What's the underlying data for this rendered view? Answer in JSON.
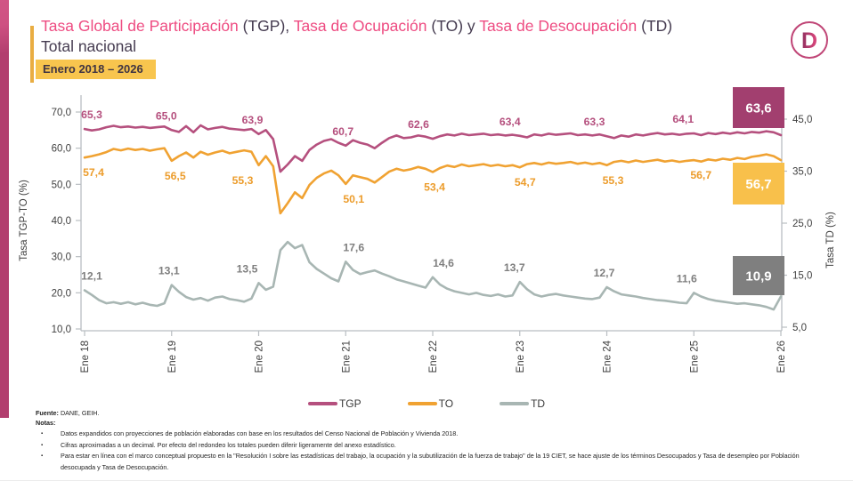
{
  "header": {
    "title_segments": [
      {
        "text": "Tasa Global de Participación ",
        "style": "pink"
      },
      {
        "text": "(TGP), ",
        "style": "dark"
      },
      {
        "text": "Tasa de Ocupación ",
        "style": "pink"
      },
      {
        "text": "(TO) ",
        "style": "dark"
      },
      {
        "text": "y ",
        "style": "dark"
      },
      {
        "text": "Tasa de Desocupación ",
        "style": "pink"
      },
      {
        "text": "(TD)",
        "style": "dark"
      }
    ],
    "subtitle": "Total nacional",
    "period": "Enero 2018 – 2026",
    "logo_letter": "D"
  },
  "colors": {
    "accent_pink": "#ee4c82",
    "dark_text": "#453b50",
    "gold": "#e9ad42",
    "badge_bg": "#f8c54e",
    "axis_line": "#b9bec2",
    "tick_text": "#3f3f3f"
  },
  "chart_data": {
    "type": "line",
    "title": "Tasa Global de Participación (TGP), Tasa de Ocupación (TO) y Tasa de Desocupación (TD) - Total nacional, Enero 2018 - 2026",
    "grid": false,
    "legend_position": "bottom",
    "x": {
      "tick_labels": [
        "Ene 18",
        "Ene 19",
        "Ene 20",
        "Ene 21",
        "Ene 22",
        "Ene 23",
        "Ene 24",
        "Ene 25",
        "Ene 26"
      ],
      "tick_month_index": [
        0,
        12,
        24,
        36,
        48,
        60,
        72,
        84,
        96
      ],
      "months_total": 97
    },
    "y_left": {
      "label": "Tasa TGP-TO (%)",
      "tick_labels": [
        "70,0",
        "60,0",
        "50,0",
        "40,0",
        "30,0",
        "20,0",
        "10,0"
      ],
      "tick_values": [
        70,
        60,
        50,
        40,
        30,
        20,
        10
      ],
      "range": [
        10,
        70
      ]
    },
    "y_right": {
      "label": "Tasa TD (%)",
      "tick_labels": [
        "45,0",
        "35,0",
        "25,0",
        "15,0",
        "5,0"
      ],
      "tick_values": [
        45,
        35,
        25,
        15,
        5
      ],
      "range": [
        5,
        45
      ]
    },
    "series": [
      {
        "name": "TGP",
        "axis": "left",
        "color": "#b5507e",
        "label_color": "#b5507e",
        "values": [
          65.3,
          64.9,
          65.2,
          65.8,
          66.2,
          65.8,
          66.0,
          65.7,
          65.9,
          65.6,
          65.8,
          66.0,
          65.0,
          64.5,
          66.1,
          64.4,
          66.3,
          65.2,
          65.6,
          65.9,
          65.4,
          65.2,
          65.0,
          65.3,
          63.9,
          65.0,
          62.5,
          53.5,
          55.5,
          57.8,
          56.5,
          59.5,
          61.0,
          62.0,
          62.5,
          61.5,
          60.7,
          62.2,
          61.5,
          61.0,
          60.0,
          61.5,
          62.8,
          63.5,
          62.8,
          63.0,
          63.5,
          63.2,
          62.6,
          63.3,
          63.8,
          63.5,
          64.0,
          63.6,
          63.8,
          64.0,
          63.6,
          63.8,
          63.5,
          63.7,
          63.4,
          63.0,
          63.8,
          63.5,
          64.0,
          63.7,
          63.9,
          64.1,
          63.6,
          63.8,
          63.5,
          63.8,
          63.3,
          62.8,
          63.5,
          63.2,
          63.8,
          63.5,
          63.9,
          64.2,
          63.8,
          64.0,
          63.7,
          64.0,
          64.1,
          63.6,
          64.2,
          63.9,
          64.3,
          64.0,
          64.4,
          64.1,
          64.5,
          64.3,
          64.7,
          64.4,
          63.6
        ],
        "point_labels": [
          {
            "m": 0,
            "t": "65,3"
          },
          {
            "m": 12,
            "t": "65,0"
          },
          {
            "m": 24,
            "t": "63,9"
          },
          {
            "m": 36,
            "t": "60,7"
          },
          {
            "m": 48,
            "t": "62,6"
          },
          {
            "m": 60,
            "t": "63,4"
          },
          {
            "m": 72,
            "t": "63,3"
          },
          {
            "m": 84,
            "t": "64,1"
          }
        ],
        "end_box": {
          "text": "63,6",
          "bg": "#a23f6f",
          "text_color": "#ffffff"
        }
      },
      {
        "name": "TO",
        "axis": "left",
        "color": "#f0a232",
        "label_color": "#ec9c2b",
        "values": [
          57.4,
          57.8,
          58.3,
          58.9,
          59.8,
          59.4,
          59.9,
          59.5,
          59.8,
          59.3,
          59.7,
          60.0,
          56.5,
          57.8,
          58.8,
          57.4,
          59.0,
          58.2,
          58.8,
          59.3,
          58.6,
          59.0,
          59.4,
          59.0,
          55.3,
          57.8,
          55.0,
          42.0,
          44.8,
          47.8,
          46.2,
          49.8,
          51.8,
          53.0,
          53.8,
          52.5,
          50.1,
          52.5,
          52.0,
          51.5,
          50.5,
          52.0,
          53.5,
          54.3,
          53.8,
          54.2,
          54.8,
          54.3,
          53.4,
          54.5,
          55.2,
          54.8,
          55.5,
          55.0,
          55.3,
          55.6,
          55.1,
          55.4,
          55.0,
          55.3,
          54.7,
          55.6,
          55.9,
          55.5,
          56.0,
          55.7,
          55.9,
          56.2,
          55.7,
          56.0,
          55.6,
          55.9,
          55.3,
          56.2,
          56.5,
          56.1,
          56.6,
          56.2,
          56.5,
          56.8,
          56.3,
          56.6,
          56.2,
          56.5,
          56.7,
          56.3,
          56.9,
          56.6,
          57.1,
          56.8,
          57.3,
          57.0,
          57.6,
          57.9,
          58.3,
          57.8,
          56.7
        ],
        "point_labels": [
          {
            "m": 0,
            "t": "57,4"
          },
          {
            "m": 12,
            "t": "56,5"
          },
          {
            "m": 24,
            "t": "55,3"
          },
          {
            "m": 36,
            "t": "50,1"
          },
          {
            "m": 48,
            "t": "53,4"
          },
          {
            "m": 60,
            "t": "54,7"
          },
          {
            "m": 72,
            "t": "55,3"
          },
          {
            "m": 84,
            "t": "56,7"
          }
        ],
        "end_box": {
          "text": "56,7",
          "bg": "#f8c04b",
          "text_color": "#ffffff"
        }
      },
      {
        "name": "TD",
        "axis": "right",
        "color": "#a8b6b3",
        "label_color": "#7f7f7f",
        "values": [
          12.1,
          11.2,
          10.2,
          9.6,
          9.8,
          9.5,
          9.8,
          9.4,
          9.7,
          9.3,
          9.1,
          9.6,
          13.1,
          11.8,
          10.8,
          10.3,
          10.6,
          10.1,
          10.7,
          10.9,
          10.4,
          10.2,
          9.9,
          10.5,
          13.5,
          12.2,
          12.8,
          19.8,
          21.4,
          20.2,
          20.8,
          17.5,
          16.2,
          15.3,
          14.4,
          13.8,
          17.6,
          16.0,
          15.2,
          15.6,
          15.9,
          15.3,
          14.8,
          14.2,
          13.8,
          13.4,
          13.0,
          12.6,
          14.6,
          13.2,
          12.4,
          11.9,
          11.6,
          11.3,
          11.6,
          11.2,
          11.0,
          11.3,
          10.9,
          11.1,
          13.7,
          12.3,
          11.3,
          10.9,
          11.2,
          11.4,
          11.1,
          10.9,
          10.7,
          10.5,
          10.4,
          10.7,
          12.7,
          11.9,
          11.3,
          11.1,
          10.9,
          10.6,
          10.4,
          10.2,
          10.1,
          9.9,
          9.7,
          9.6,
          11.6,
          10.9,
          10.4,
          10.1,
          9.9,
          9.7,
          9.5,
          9.6,
          9.4,
          9.2,
          8.9,
          8.4,
          10.9
        ],
        "point_labels": [
          {
            "m": 0,
            "t": "12,1"
          },
          {
            "m": 12,
            "t": "13,1"
          },
          {
            "m": 24,
            "t": "13,5"
          },
          {
            "m": 36,
            "t": "17,6"
          },
          {
            "m": 48,
            "t": "14,6"
          },
          {
            "m": 60,
            "t": "13,7"
          },
          {
            "m": 72,
            "t": "12,7"
          },
          {
            "m": 84,
            "t": "11,6"
          }
        ],
        "end_box": {
          "text": "10,9",
          "bg": "#7f7f7f",
          "text_color": "#ffffff"
        }
      }
    ]
  },
  "footer": {
    "fuente_label": "Fuente:",
    "fuente_text": " DANE, GEIH.",
    "notas_label": "Notas:",
    "bullets": [
      "Datos expandidos con proyecciones de población elaboradas con base en los resultados del Censo Nacional de Población y Vivienda 2018.",
      "Cifras aproximadas a un decimal. Por efecto del redondeo los totales pueden diferir ligeramente del anexo estadístico.",
      "Para estar en línea con el marco conceptual propuesto en la \"Resolución I sobre las estadísticas del trabajo, la ocupación y la subutilización de la fuerza de trabajo\" de la 19 CIET, se hace ajuste de los términos Desocupados y Tasa de desempleo por Población desocupada y Tasa de Desocupación."
    ]
  }
}
